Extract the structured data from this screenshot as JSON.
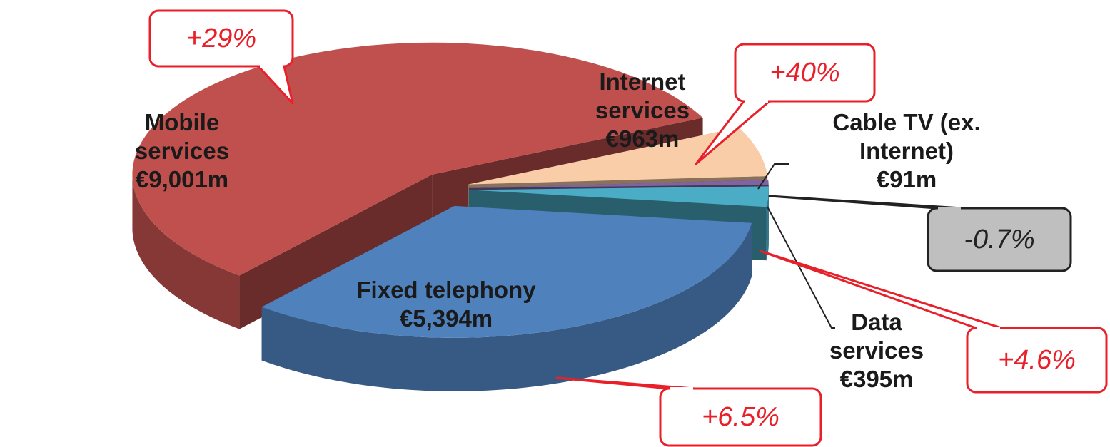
{
  "chart_data": {
    "type": "pie",
    "categories": [
      "Mobile services",
      "Internet services",
      "Cable TV (ex. Internet)",
      "Data services",
      "Fixed telephony"
    ],
    "values": [
      9001,
      963,
      91,
      395,
      5394
    ],
    "value_labels": [
      "€9,001m",
      "€963m",
      "€91m",
      "€395m",
      "€5,394m"
    ],
    "colors": [
      "#c0504d",
      "#f9cda8",
      "#8064a2",
      "#4bacc6",
      "#4f81bd"
    ],
    "annotations": [
      "+29%",
      "+40%",
      "-0.7%",
      "+4.6%",
      "+6.5%"
    ]
  }
}
